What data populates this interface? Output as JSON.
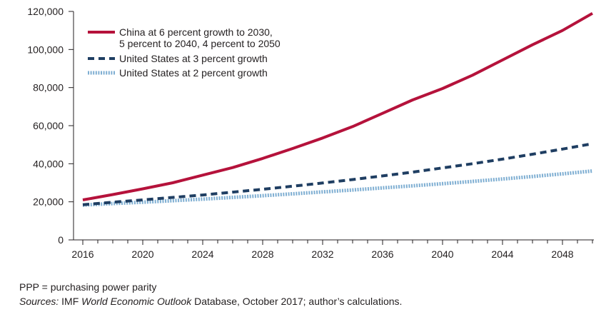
{
  "chart_data": {
    "type": "line",
    "title": "",
    "xlabel": "",
    "ylabel": "",
    "xlim": [
      2016,
      2050
    ],
    "ylim": [
      0,
      120000
    ],
    "x_ticks": [
      2016,
      2020,
      2024,
      2028,
      2032,
      2036,
      2040,
      2044,
      2048
    ],
    "y_ticks": [
      0,
      20000,
      40000,
      60000,
      80000,
      100000,
      120000
    ],
    "x_tick_labels": [
      "2016",
      "2020",
      "2024",
      "2028",
      "2032",
      "2036",
      "2040",
      "2044",
      "2048"
    ],
    "y_tick_labels": [
      "0",
      "20,000",
      "40,000",
      "60,000",
      "80,000",
      "100,000",
      "120,000"
    ],
    "grid": false,
    "legend_position": "top-left",
    "x": [
      2016,
      2018,
      2020,
      2022,
      2024,
      2026,
      2028,
      2030,
      2032,
      2034,
      2036,
      2038,
      2040,
      2042,
      2044,
      2046,
      2048,
      2050
    ],
    "series": [
      {
        "name_lines": [
          "China at 6 percent growth to 2030,",
          "5 percent to 2040, 4 percent to 2050"
        ],
        "color": "#b5123b",
        "style": "solid",
        "values": [
          21000,
          23800,
          26800,
          30000,
          34000,
          38000,
          42800,
          48000,
          53500,
          59500,
          66500,
          73500,
          79500,
          86500,
          94500,
          102500,
          110000,
          119000
        ]
      },
      {
        "name_lines": [
          "United States at 3 percent growth"
        ],
        "color": "#1f3e62",
        "style": "dashed",
        "values": [
          18500,
          19800,
          21000,
          22300,
          23600,
          25100,
          26600,
          28200,
          29900,
          31700,
          33600,
          35600,
          37800,
          40000,
          42400,
          45000,
          47700,
          50500
        ]
      },
      {
        "name_lines": [
          "United States at 2 percent growth"
        ],
        "color": "#7eaed2",
        "style": "dotted",
        "values": [
          18300,
          19100,
          19800,
          20600,
          21400,
          22300,
          23200,
          24200,
          25200,
          26200,
          27300,
          28400,
          29500,
          30700,
          32000,
          33300,
          34700,
          36200
        ]
      }
    ]
  },
  "footnotes": {
    "ppp": "PPP = purchasing power parity",
    "sources_label": "Sources:",
    "sources_part1": " IMF ",
    "sources_italic": "World Economic Outlook",
    "sources_part2": " Database, October 2017; author’s calculations."
  }
}
